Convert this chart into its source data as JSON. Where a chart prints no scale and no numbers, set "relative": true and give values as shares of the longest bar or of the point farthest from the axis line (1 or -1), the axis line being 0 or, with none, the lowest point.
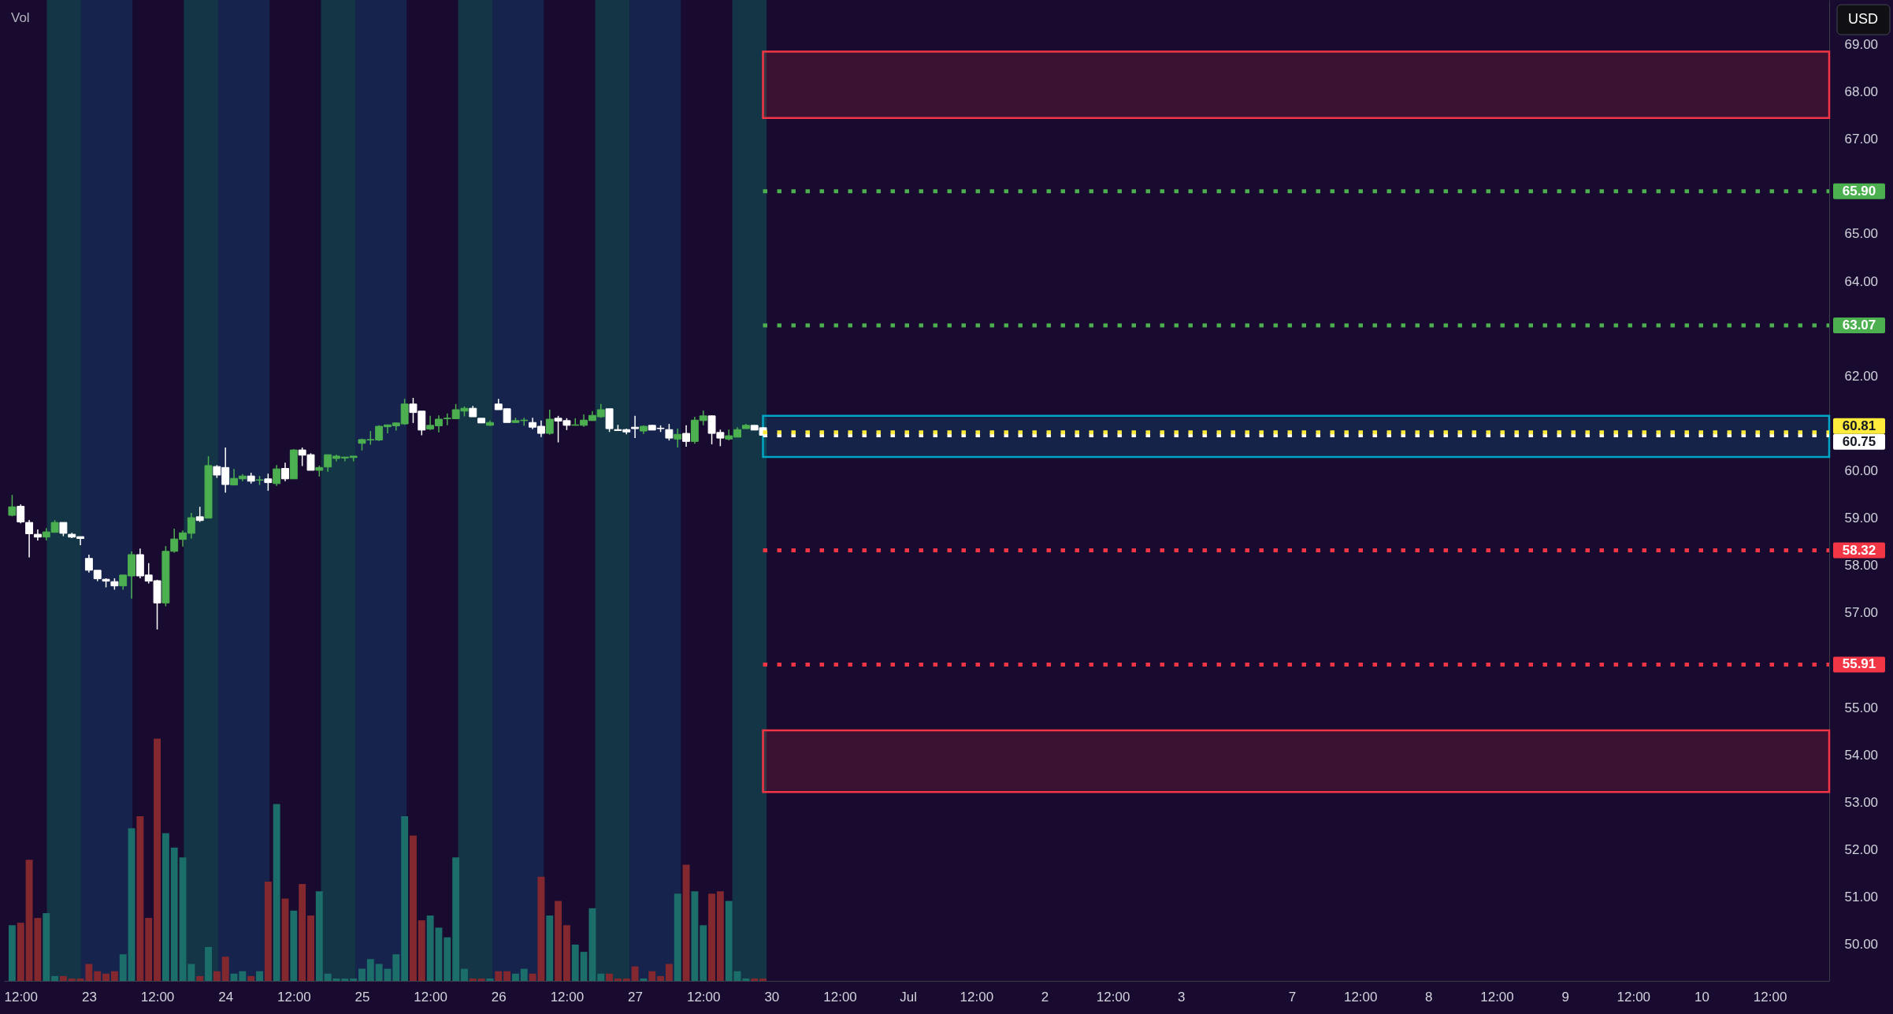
{
  "chart_data": [
    {
      "type": "candlestick",
      "ylabel": "USD",
      "categories": [
        null,
        "12:00",
        null,
        null,
        null,
        null,
        null,
        null,
        null,
        "23",
        null,
        null,
        null,
        null,
        null,
        null,
        null,
        "12:00",
        null,
        null,
        null,
        null,
        null,
        null,
        null,
        "24",
        null,
        null,
        null,
        null,
        null,
        null,
        null,
        "12:00",
        null,
        null,
        null,
        null,
        null,
        null,
        null,
        "25",
        null,
        null,
        null,
        null,
        null,
        null,
        null,
        "12:00",
        null,
        null,
        null,
        null,
        null,
        null,
        null,
        "26",
        null,
        null,
        null,
        null,
        null,
        null,
        null,
        "12:00",
        null,
        null,
        null,
        null,
        null,
        null,
        null,
        "27",
        null,
        null,
        null,
        null,
        null,
        null,
        null,
        "12:00",
        null,
        null,
        null,
        null,
        null,
        null,
        null,
        "30",
        null,
        null,
        null,
        null,
        null,
        null,
        null,
        "12:00",
        null,
        null,
        null,
        null,
        null,
        null,
        null,
        "Jul",
        null,
        null,
        null,
        null,
        null,
        null,
        null,
        "12:00",
        null,
        null,
        null,
        null,
        null,
        null,
        null,
        "2",
        null,
        null,
        null,
        null,
        null,
        null,
        null,
        "12:00",
        null,
        null,
        null,
        null,
        null,
        null,
        null,
        "3",
        null,
        null,
        null,
        null,
        null,
        null,
        null,
        null,
        null,
        null,
        null,
        null,
        "7",
        null,
        null,
        null,
        null,
        null,
        null,
        null,
        "12:00",
        null,
        null,
        null,
        null,
        null,
        null,
        null,
        "8",
        null,
        null,
        null,
        null,
        null,
        null,
        null,
        "12:00",
        null,
        null,
        null,
        null,
        null,
        null,
        null,
        "9",
        null,
        null,
        null,
        null,
        null,
        null,
        null,
        "12:00",
        null,
        null,
        null,
        null,
        null,
        null,
        null,
        "10",
        null,
        null,
        null,
        null,
        null,
        null,
        null,
        "12:00",
        null,
        null,
        null,
        null,
        null,
        null
      ],
      "ohlc": [
        [
          59.06,
          59.49,
          59.04,
          59.24
        ],
        [
          59.25,
          59.29,
          58.89,
          58.92
        ],
        [
          58.91,
          58.96,
          58.17,
          58.67
        ],
        [
          58.66,
          58.76,
          58.53,
          58.6
        ],
        [
          58.6,
          58.79,
          58.53,
          58.71
        ],
        [
          58.7,
          58.96,
          58.7,
          58.91
        ],
        [
          58.91,
          58.91,
          58.62,
          58.68
        ],
        [
          58.66,
          58.69,
          58.58,
          58.6
        ],
        [
          58.61,
          58.61,
          58.43,
          58.57
        ],
        [
          58.15,
          58.23,
          57.85,
          57.9
        ],
        [
          57.9,
          57.9,
          57.67,
          57.72
        ],
        [
          57.71,
          57.73,
          57.54,
          57.67
        ],
        [
          57.66,
          57.73,
          57.49,
          57.57
        ],
        [
          57.57,
          57.8,
          57.49,
          57.8
        ],
        [
          57.78,
          58.3,
          57.3,
          58.23
        ],
        [
          58.23,
          58.36,
          57.73,
          57.78
        ],
        [
          57.8,
          58.05,
          57.62,
          57.67
        ],
        [
          57.68,
          57.7,
          56.65,
          57.21
        ],
        [
          57.21,
          58.41,
          57.14,
          58.3
        ],
        [
          58.3,
          58.78,
          58.27,
          58.56
        ],
        [
          58.55,
          58.74,
          58.4,
          58.69
        ],
        [
          58.68,
          59.11,
          58.57,
          59.01
        ],
        [
          59.03,
          59.24,
          58.92,
          58.95
        ],
        [
          59.0,
          60.31,
          59.0,
          60.11
        ],
        [
          60.09,
          60.12,
          59.85,
          59.91
        ],
        [
          60.07,
          60.49,
          59.54,
          59.71
        ],
        [
          59.7,
          60.04,
          59.7,
          59.84
        ],
        [
          59.83,
          59.93,
          59.78,
          59.89
        ],
        [
          59.89,
          59.96,
          59.73,
          59.78
        ],
        [
          59.8,
          59.89,
          59.7,
          59.81
        ],
        [
          59.83,
          59.94,
          59.58,
          59.75
        ],
        [
          59.73,
          60.12,
          59.68,
          60.04
        ],
        [
          60.05,
          60.17,
          59.78,
          59.83
        ],
        [
          59.83,
          60.46,
          59.83,
          60.44
        ],
        [
          60.44,
          60.49,
          60.1,
          60.33
        ],
        [
          60.34,
          60.37,
          60.01,
          60.01
        ],
        [
          60.01,
          60.11,
          59.88,
          60.07
        ],
        [
          60.08,
          60.34,
          59.98,
          60.34
        ],
        [
          60.26,
          60.34,
          60.2,
          60.31
        ],
        [
          60.27,
          60.29,
          60.2,
          60.29
        ],
        [
          60.28,
          60.31,
          60.2,
          60.31
        ],
        [
          60.58,
          60.68,
          60.43,
          60.66
        ],
        [
          60.65,
          60.84,
          60.55,
          60.66
        ],
        [
          60.65,
          60.96,
          60.63,
          60.94
        ],
        [
          60.93,
          60.97,
          60.79,
          60.97
        ],
        [
          60.95,
          61.02,
          60.85,
          61.01
        ],
        [
          60.99,
          61.52,
          60.97,
          61.41
        ],
        [
          61.41,
          61.54,
          61.01,
          61.23
        ],
        [
          61.26,
          61.26,
          60.75,
          60.86
        ],
        [
          60.88,
          61.16,
          60.86,
          60.96
        ],
        [
          60.95,
          61.17,
          60.81,
          61.09
        ],
        [
          61.1,
          61.21,
          60.96,
          61.11
        ],
        [
          61.1,
          61.41,
          61.1,
          61.29
        ],
        [
          61.26,
          61.36,
          61.15,
          61.32
        ],
        [
          61.32,
          61.37,
          61.14,
          61.14
        ],
        [
          61.11,
          61.11,
          61.01,
          61.01
        ],
        [
          60.96,
          61.06,
          60.95,
          61.02
        ],
        [
          61.41,
          61.52,
          61.29,
          61.29
        ],
        [
          61.31,
          61.32,
          61.02,
          61.02
        ],
        [
          61.02,
          61.12,
          61.01,
          61.06
        ],
        [
          61.06,
          61.12,
          60.95,
          61.07
        ],
        [
          61.02,
          61.12,
          60.88,
          60.92
        ],
        [
          60.94,
          61.06,
          60.71,
          60.79
        ],
        [
          60.79,
          61.29,
          60.76,
          61.09
        ],
        [
          61.11,
          61.16,
          60.6,
          61.05
        ],
        [
          61.06,
          61.11,
          60.86,
          60.96
        ],
        [
          60.96,
          61.11,
          60.96,
          60.97
        ],
        [
          60.96,
          61.19,
          60.93,
          61.07
        ],
        [
          61.06,
          61.26,
          61.06,
          61.17
        ],
        [
          61.14,
          61.41,
          61.12,
          61.29
        ],
        [
          61.31,
          61.31,
          60.82,
          60.89
        ],
        [
          60.87,
          60.97,
          60.85,
          60.85
        ],
        [
          60.87,
          60.89,
          60.77,
          60.82
        ],
        [
          60.92,
          61.16,
          60.69,
          60.89
        ],
        [
          60.84,
          60.96,
          60.78,
          60.94
        ],
        [
          60.96,
          60.97,
          60.86,
          60.86
        ],
        [
          60.9,
          60.96,
          60.82,
          60.89
        ],
        [
          60.87,
          60.99,
          60.64,
          60.69
        ],
        [
          60.67,
          60.89,
          60.49,
          60.77
        ],
        [
          60.79,
          60.96,
          60.51,
          60.62
        ],
        [
          60.62,
          61.14,
          60.57,
          61.07
        ],
        [
          61.06,
          61.27,
          60.96,
          61.16
        ],
        [
          61.16,
          61.17,
          60.56,
          60.79
        ],
        [
          60.81,
          60.87,
          60.52,
          60.69
        ],
        [
          60.67,
          60.87,
          60.64,
          60.74
        ],
        [
          60.71,
          60.92,
          60.71,
          60.87
        ],
        [
          60.89,
          60.99,
          60.89,
          60.96
        ],
        [
          60.96,
          60.96,
          60.86,
          60.86
        ],
        [
          60.91,
          60.92,
          60.75,
          60.75
        ],
        null,
        null,
        null,
        null,
        null,
        null,
        null,
        null,
        null,
        null,
        null,
        null,
        null,
        null,
        null,
        null,
        null,
        null,
        null,
        null,
        null,
        null,
        null,
        null,
        null,
        null,
        null,
        null,
        null,
        null,
        null,
        null,
        null,
        null,
        null,
        null,
        null,
        null,
        null,
        null,
        null,
        null,
        null,
        null,
        null,
        null,
        null,
        null,
        null,
        null,
        null,
        null,
        null,
        null,
        null,
        null,
        null,
        null,
        null,
        null,
        null,
        null,
        null,
        null,
        null,
        null,
        null,
        null,
        null,
        null,
        null,
        null,
        null,
        null,
        null,
        null,
        null,
        null,
        null,
        null,
        null,
        null,
        null,
        null,
        null,
        null,
        null,
        null,
        null,
        null,
        null,
        null,
        null,
        null,
        null,
        null,
        null,
        null,
        null,
        null,
        null,
        null,
        null,
        null,
        null,
        null,
        null,
        null,
        null,
        null,
        null,
        null,
        null,
        null,
        null,
        null,
        null,
        null,
        null,
        null,
        null,
        null,
        null,
        null
      ],
      "colors": [
        "#4caf50",
        "#ffffff",
        "#ffffff",
        "#ffffff",
        "#4caf50",
        "#4caf50",
        "#ffffff",
        "#ffffff",
        "#ffffff",
        "#ffffff",
        "#ffffff",
        "#ffffff",
        "#ffffff",
        "#4caf50",
        "#4caf50",
        "#ffffff",
        "#ffffff",
        "#ffffff",
        "#4caf50",
        "#4caf50",
        "#4caf50",
        "#4caf50",
        "#ffffff",
        "#4caf50",
        "#ffffff",
        "#ffffff",
        "#4caf50",
        "#4caf50",
        "#ffffff",
        "#4caf50",
        "#ffffff",
        "#4caf50",
        "#ffffff",
        "#4caf50",
        "#ffffff",
        "#ffffff",
        "#4caf50",
        "#4caf50",
        "#4caf50",
        "#4caf50",
        "#4caf50",
        "#4caf50",
        "#4caf50",
        "#4caf50",
        "#4caf50",
        "#4caf50",
        "#4caf50",
        "#ffffff",
        "#ffffff",
        "#4caf50",
        "#4caf50",
        "#4caf50",
        "#4caf50",
        "#4caf50",
        "#ffffff",
        "#ffffff",
        "#4caf50",
        "#ffffff",
        "#ffffff",
        "#4caf50",
        "#4caf50",
        "#ffffff",
        "#ffffff",
        "#4caf50",
        "#ffffff",
        "#ffffff",
        "#4caf50",
        "#4caf50",
        "#4caf50",
        "#4caf50",
        "#ffffff",
        "#ffffff",
        "#ffffff",
        "#ffffff",
        "#4caf50",
        "#ffffff",
        "#ffffff",
        "#ffffff",
        "#4caf50",
        "#ffffff",
        "#4caf50",
        "#4caf50",
        "#ffffff",
        "#ffffff",
        "#4caf50",
        "#4caf50",
        "#4caf50",
        "#ffffff",
        "#ffffff",
        null,
        null,
        null,
        null,
        null,
        null,
        null,
        null,
        null,
        null,
        null,
        null,
        null,
        null,
        null,
        null,
        null,
        null,
        null,
        null,
        null,
        null,
        null,
        null,
        null,
        null,
        null,
        null,
        null,
        null,
        null,
        null,
        null,
        null,
        null,
        null,
        null,
        null,
        null,
        null,
        null,
        null,
        null,
        null,
        null,
        null,
        null,
        null,
        null,
        null,
        null,
        null,
        null,
        null,
        null,
        null,
        null,
        null,
        null,
        null,
        null,
        null,
        null,
        null,
        null,
        null,
        null,
        null,
        null,
        null,
        null,
        null,
        null,
        null,
        null,
        null,
        null,
        null,
        null,
        null,
        null,
        null,
        null,
        null,
        null,
        null,
        null,
        null,
        null,
        null,
        null,
        null,
        null,
        null,
        null,
        null,
        null,
        null,
        null,
        null,
        null,
        null,
        null,
        null,
        null,
        null,
        null,
        null,
        null,
        null,
        null,
        null,
        null,
        null,
        null,
        null,
        null,
        null,
        null,
        null,
        null,
        null,
        null,
        null
      ],
      "ylim": [
        49.23,
        69.94
      ],
      "yticks": [
        {
          "value": 50,
          "label": "50.00"
        },
        {
          "value": 51,
          "label": "51.00"
        },
        {
          "value": 52,
          "label": "52.00"
        },
        {
          "value": 53,
          "label": "53.00"
        },
        {
          "value": 54,
          "label": "54.00"
        },
        {
          "value": 55,
          "label": "55.00"
        },
        {
          "value": 57,
          "label": "57.00"
        },
        {
          "value": 58,
          "label": "58.00"
        },
        {
          "value": 59,
          "label": "59.00"
        },
        {
          "value": 60,
          "label": "60.00"
        },
        {
          "value": 62,
          "label": "62.00"
        },
        {
          "value": 64,
          "label": "64.00"
        },
        {
          "value": 65,
          "label": "65.00"
        },
        {
          "value": 67,
          "label": "67.00"
        },
        {
          "value": 68,
          "label": "68.00"
        },
        {
          "value": 69,
          "label": "69.00"
        }
      ],
      "ref_lines": [
        {
          "axis": "y",
          "value": 65.9,
          "label": "65.90",
          "color": "#4caf50",
          "line_style": "dotted"
        },
        {
          "axis": "y",
          "value": 63.07,
          "label": "63.07",
          "color": "#4caf50",
          "line_style": "dotted"
        },
        {
          "axis": "y",
          "value": 60.75,
          "label": "60.75",
          "color": "#ffffff",
          "line_style": "dotted"
        },
        {
          "axis": "y",
          "value": 60.81,
          "label": "60.81",
          "color": "#ffeb3b",
          "line_style": "dotted"
        },
        {
          "axis": "y",
          "value": 58.32,
          "label": "58.32",
          "color": "#f23645",
          "line_style": "dotted"
        },
        {
          "axis": "y",
          "value": 55.91,
          "label": "55.91",
          "color": "#f23645",
          "line_style": "dotted"
        }
      ],
      "bands": [
        {
          "axis": "y",
          "from": 67.45,
          "to": 68.85,
          "color": "#f23645"
        },
        {
          "axis": "y",
          "from": 60.29,
          "to": 61.16,
          "color": "#00a6c6"
        },
        {
          "axis": "y",
          "from": 53.22,
          "to": 54.52,
          "color": "#f23645"
        }
      ]
    },
    {
      "type": "bar",
      "title": "Vol",
      "relative": true,
      "values": [
        0.23,
        0.24,
        0.5,
        0.26,
        0.28,
        0.02,
        0.02,
        0.01,
        0.01,
        0.07,
        0.04,
        0.03,
        0.04,
        0.11,
        0.63,
        0.68,
        0.26,
        1,
        0.61,
        0.55,
        0.51,
        0.07,
        0.02,
        0.14,
        0.04,
        0.1,
        0.03,
        0.04,
        0.02,
        0.04,
        0.41,
        0.73,
        0.34,
        0.29,
        0.4,
        0.27,
        0.37,
        0.03,
        0.01,
        0.01,
        0.01,
        0.05,
        0.09,
        0.07,
        0.05,
        0.11,
        0.68,
        0.6,
        0.25,
        0.27,
        0.22,
        0.18,
        0.51,
        0.05,
        0.01,
        0.01,
        0.01,
        0.04,
        0.04,
        0.03,
        0.05,
        0.03,
        0.43,
        0.27,
        0.33,
        0.23,
        0.15,
        0.12,
        0.3,
        0.03,
        0.03,
        0.01,
        0.01,
        0.06,
        0.01,
        0.04,
        0.02,
        0.07,
        0.36,
        0.48,
        0.37,
        0.23,
        0.36,
        0.37,
        0.33,
        0.04,
        0.01,
        0.01,
        0.01,
        null,
        null,
        null,
        null,
        null,
        null,
        null,
        null,
        null,
        null,
        null,
        null,
        null,
        null,
        null,
        null,
        null,
        null,
        null,
        null,
        null,
        null,
        null,
        null,
        null,
        null,
        null,
        null,
        null,
        null,
        null,
        null,
        null,
        null,
        null,
        null,
        null,
        null,
        null,
        null,
        null,
        null,
        null,
        null,
        null,
        null,
        null,
        null,
        null,
        null,
        null,
        null,
        null,
        null,
        null,
        null,
        null,
        null,
        null,
        null,
        null,
        null,
        null,
        null,
        null,
        null,
        null,
        null,
        null,
        null,
        null,
        null,
        null,
        null,
        null,
        null,
        null,
        null,
        null,
        null,
        null,
        null,
        null,
        null,
        null,
        null,
        null,
        null,
        null,
        null,
        null,
        null,
        null,
        null,
        null,
        null,
        null,
        null,
        null,
        null,
        null,
        null,
        null,
        null,
        null,
        null,
        null,
        null,
        null,
        null,
        null,
        null,
        null,
        null,
        null,
        null,
        null,
        null,
        null,
        null,
        null,
        null,
        null,
        null
      ],
      "colors": [
        "#1b6e69",
        "#84282f",
        "#84282f",
        "#84282f",
        "#1b6e69",
        "#1b6e69",
        "#84282f",
        "#84282f",
        "#84282f",
        "#84282f",
        "#84282f",
        "#84282f",
        "#84282f",
        "#1b6e69",
        "#1b6e69",
        "#84282f",
        "#84282f",
        "#84282f",
        "#1b6e69",
        "#1b6e69",
        "#1b6e69",
        "#1b6e69",
        "#84282f",
        "#1b6e69",
        "#84282f",
        "#84282f",
        "#1b6e69",
        "#1b6e69",
        "#84282f",
        "#1b6e69",
        "#84282f",
        "#1b6e69",
        "#84282f",
        "#1b6e69",
        "#84282f",
        "#84282f",
        "#1b6e69",
        "#1b6e69",
        "#1b6e69",
        "#1b6e69",
        "#1b6e69",
        "#1b6e69",
        "#1b6e69",
        "#1b6e69",
        "#1b6e69",
        "#1b6e69",
        "#1b6e69",
        "#84282f",
        "#84282f",
        "#1b6e69",
        "#1b6e69",
        "#1b6e69",
        "#1b6e69",
        "#1b6e69",
        "#84282f",
        "#84282f",
        "#1b6e69",
        "#84282f",
        "#84282f",
        "#1b6e69",
        "#1b6e69",
        "#84282f",
        "#84282f",
        "#1b6e69",
        "#84282f",
        "#84282f",
        "#1b6e69",
        "#1b6e69",
        "#1b6e69",
        "#1b6e69",
        "#84282f",
        "#84282f",
        "#84282f",
        "#84282f",
        "#1b6e69",
        "#84282f",
        "#84282f",
        "#84282f",
        "#1b6e69",
        "#84282f",
        "#1b6e69",
        "#1b6e69",
        "#84282f",
        "#84282f",
        "#1b6e69",
        "#1b6e69",
        "#1b6e69",
        "#84282f",
        "#84282f",
        null,
        null,
        null,
        null,
        null,
        null,
        null,
        null,
        null,
        null,
        null,
        null,
        null,
        null,
        null,
        null,
        null,
        null,
        null,
        null,
        null,
        null,
        null,
        null,
        null,
        null,
        null,
        null,
        null,
        null,
        null,
        null,
        null,
        null,
        null,
        null,
        null,
        null,
        null,
        null,
        null,
        null,
        null,
        null,
        null,
        null,
        null,
        null,
        null,
        null,
        null,
        null,
        null,
        null,
        null,
        null,
        null,
        null,
        null,
        null,
        null,
        null,
        null,
        null,
        null,
        null,
        null,
        null,
        null,
        null,
        null,
        null,
        null,
        null,
        null,
        null,
        null,
        null,
        null,
        null,
        null,
        null,
        null,
        null,
        null,
        null,
        null,
        null,
        null,
        null,
        null,
        null,
        null,
        null,
        null,
        null,
        null,
        null,
        null,
        null,
        null,
        null,
        null,
        null,
        null,
        null,
        null,
        null,
        null,
        null,
        null,
        null,
        null,
        null,
        null,
        null,
        null,
        null,
        null,
        null,
        null,
        null,
        null,
        null
      ]
    }
  ]
}
